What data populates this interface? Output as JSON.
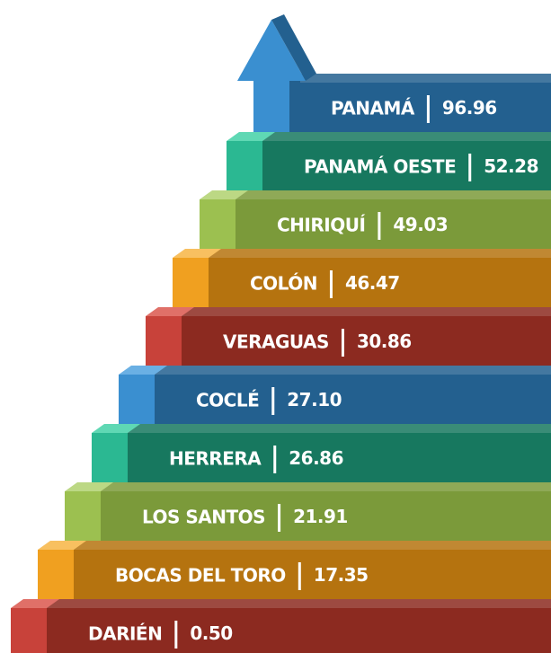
{
  "steps": [
    {
      "name": "PANAMÁ",
      "value": "96.96"
    },
    {
      "name": "PANAMÁ OESTE",
      "value": "52.28"
    },
    {
      "name": "CHIRIQUÍ",
      "value": "49.03"
    },
    {
      "name": "COLÓN",
      "value": "46.47"
    },
    {
      "name": "VERAGUAS",
      "value": "30.86"
    },
    {
      "name": "COCLÉ",
      "value": "27.10"
    },
    {
      "name": "HERRERA",
      "value": "26.86"
    },
    {
      "name": "LOS SANTOS",
      "value": "21.91"
    },
    {
      "name": "BOCAS DEL TORO",
      "value": "17.35"
    },
    {
      "name": "DARIÉN",
      "value": "0.50"
    }
  ]
}
